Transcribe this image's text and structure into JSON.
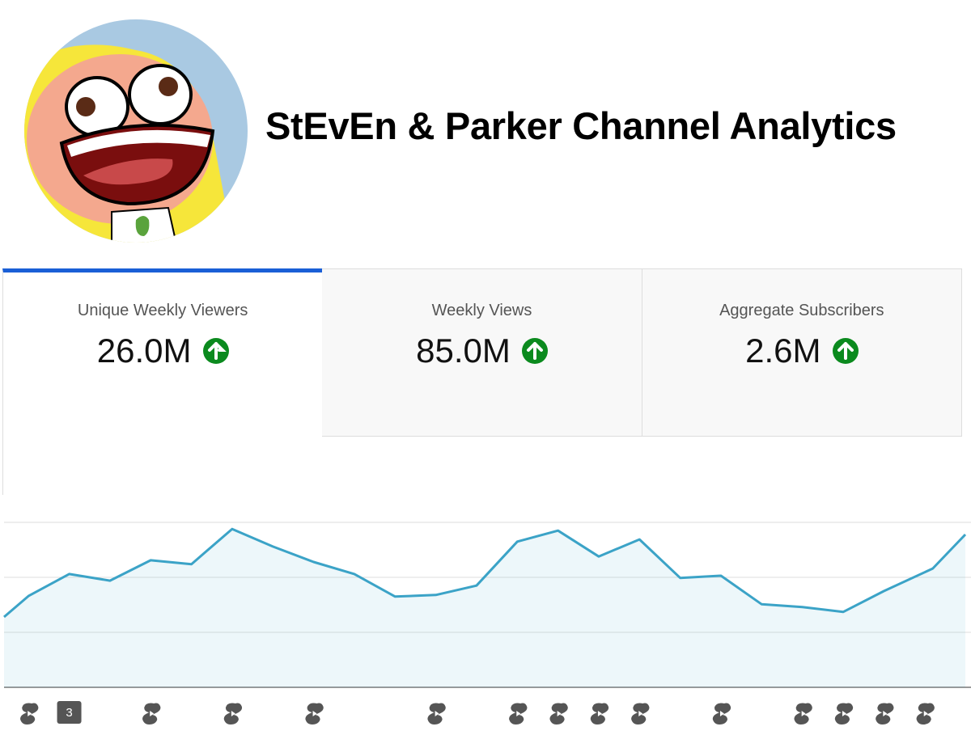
{
  "header": {
    "title": "StEvEn & Parker Channel Analytics"
  },
  "metrics": [
    {
      "label": "Unique Weekly Viewers",
      "value": "26.0M"
    },
    {
      "label": "Weekly Views",
      "value": "85.0M"
    },
    {
      "label": "Aggregate Subscribers",
      "value": "2.6M"
    }
  ],
  "chart_data": {
    "type": "area",
    "color": "#3ba3c7",
    "x": [
      0,
      0.6,
      1.6,
      2.6,
      3.6,
      4.6,
      5.6,
      6.6,
      7.6,
      8.6,
      9.6,
      10.6,
      11.6,
      12.6,
      13.6,
      14.6,
      15.6,
      16.6,
      17.6,
      18.6,
      19.6,
      20.6,
      21.6,
      22.8,
      23.6
    ],
    "values": [
      1.28,
      1.66,
      2.06,
      1.94,
      2.31,
      2.24,
      2.88,
      2.56,
      2.28,
      2.06,
      1.65,
      1.68,
      1.85,
      2.65,
      2.85,
      2.38,
      2.69,
      1.99,
      2.03,
      1.51,
      1.46,
      1.37,
      1.75,
      2.16,
      2.78
    ],
    "xlim": [
      0,
      23.6
    ],
    "ylim": [
      0,
      3.5
    ],
    "yticks": [
      0,
      1,
      2,
      3
    ],
    "grid": true,
    "badge": "3"
  }
}
